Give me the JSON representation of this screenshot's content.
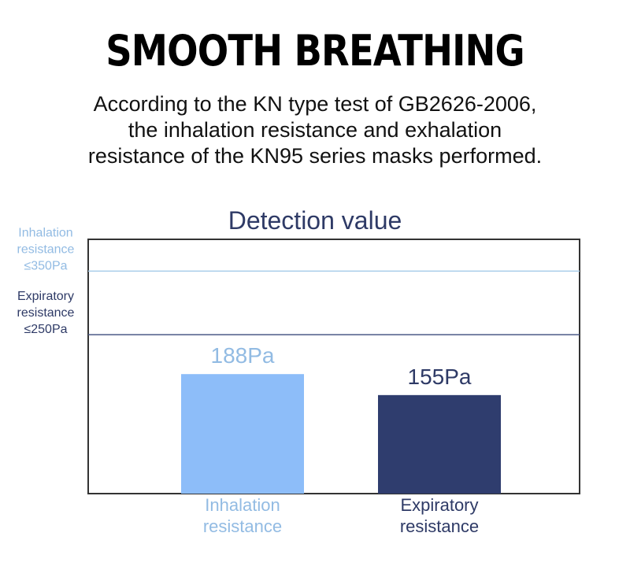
{
  "header": {
    "title": "SMOOTH BREATHING",
    "subtitle_lines": [
      "According to the KN type test of GB2626-2006,",
      "the inhalation resistance and exhalation",
      "resistance of the KN95 series masks performed."
    ]
  },
  "chart_data": {
    "type": "bar",
    "title": "Detection value",
    "categories": [
      [
        "Inhalation",
        "resistance"
      ],
      [
        "Expiratory",
        "resistance"
      ]
    ],
    "values": [
      188,
      155
    ],
    "value_labels": [
      "188Pa",
      "155Pa"
    ],
    "unit": "Pa",
    "ylim": [
      0,
      400
    ],
    "thresholds": [
      {
        "value": 350,
        "lines": [
          "Inhalation",
          "resistance",
          "≤350Pa"
        ]
      },
      {
        "value": 250,
        "lines": [
          "Expiratory",
          "resistance",
          "≤250Pa"
        ]
      }
    ],
    "colors": {
      "inhalation": "#8dbdf9",
      "expiratory": "#2f3d6e",
      "title": "#2e3a66",
      "inhalation_text": "#92bbe3",
      "expiratory_text": "#2e3a66",
      "threshold_inhalation_line": "#a9cdea",
      "threshold_expiratory_line": "#4b5a86",
      "frame": "#333333"
    },
    "grid": false,
    "legend": "none"
  }
}
